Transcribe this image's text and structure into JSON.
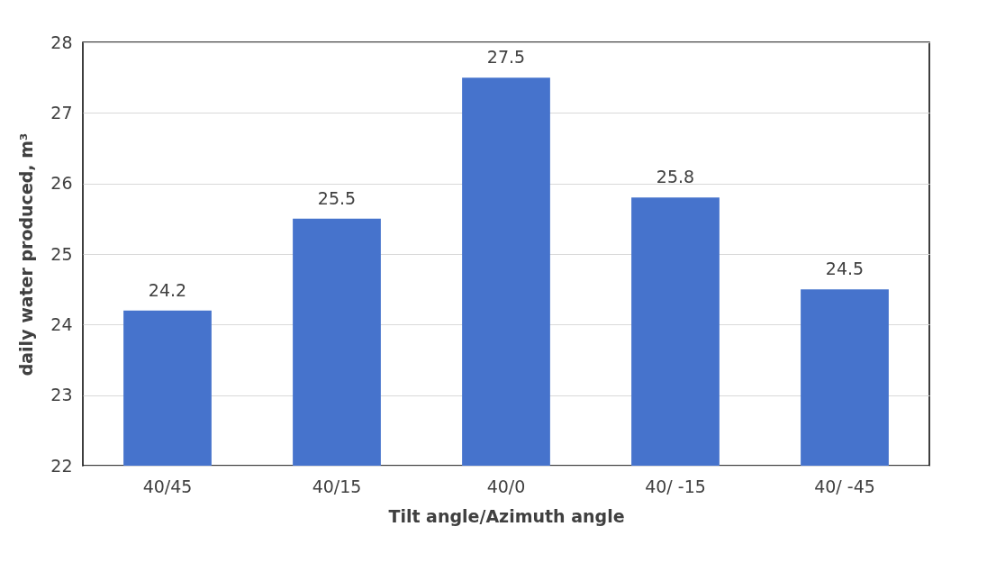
{
  "chart_data": {
    "type": "bar",
    "xlabel": "Tilt angle/Azimuth angle",
    "ylabel": "daily water produced, m³",
    "categories": [
      "40/45",
      "40/15",
      "40/0",
      "40/ -15",
      "40/ -45"
    ],
    "values": [
      24.2,
      25.5,
      27.5,
      25.8,
      24.5
    ],
    "color": "#4673cc",
    "ylim": [
      22,
      28
    ],
    "yticks": [
      22,
      23,
      24,
      25,
      26,
      27,
      28
    ],
    "grid": "y",
    "data_labels": true
  }
}
